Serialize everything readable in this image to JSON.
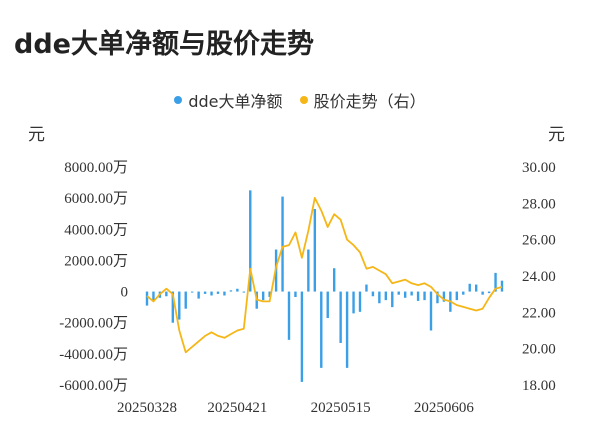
{
  "title": "dde大单净额与股价走势",
  "chart_data": {
    "type": "bar+line",
    "title": "dde大单净额与股价走势",
    "left_unit": "元",
    "right_unit": "元",
    "y_left_ticks": [
      "8000.00万",
      "6000.00万",
      "4000.00万",
      "2000.00万",
      "0",
      "-2000.00万",
      "-4000.00万",
      "-6000.00万"
    ],
    "y_left_values": [
      8000,
      6000,
      4000,
      2000,
      0,
      -2000,
      -4000,
      -6000
    ],
    "y_right_ticks": [
      "30.00",
      "28.00",
      "26.00",
      "24.00",
      "22.00",
      "20.00",
      "18.00"
    ],
    "y_right_values": [
      30,
      28,
      26,
      24,
      22,
      20,
      18
    ],
    "ylim_left": [
      -6000,
      8000
    ],
    "ylim_right": [
      18,
      30
    ],
    "x_ticks": [
      {
        "label": "20250328",
        "index": 0
      },
      {
        "label": "20250421",
        "index": 14
      },
      {
        "label": "20250515",
        "index": 30
      },
      {
        "label": "20250606",
        "index": 46
      }
    ],
    "dates_shown": [
      "20250328",
      "20250421",
      "20250515",
      "20250606"
    ],
    "series": [
      {
        "name": "dde大单净额",
        "kind": "bar",
        "color": "#3a9fe6",
        "values": [
          -900,
          -600,
          -400,
          -300,
          -2000,
          -1800,
          -1100,
          -50,
          -450,
          -150,
          -250,
          -150,
          -250,
          80,
          180,
          -50,
          6500,
          -1100,
          -550,
          -350,
          2700,
          6100,
          -3100,
          -350,
          -5800,
          2700,
          5300,
          -4900,
          -1700,
          1500,
          -3300,
          -4900,
          -1400,
          -1300,
          450,
          -300,
          -750,
          -550,
          -1000,
          -200,
          -400,
          -250,
          -600,
          -550,
          -2500,
          -750,
          -650,
          -1300,
          -550,
          -200,
          500,
          450,
          -200,
          -100,
          1200,
          700
        ]
      },
      {
        "name": "股价走势（右）",
        "kind": "line",
        "color": "#f5b617",
        "values": [
          22.9,
          22.6,
          23.0,
          23.3,
          23.0,
          21.0,
          19.8,
          20.1,
          20.4,
          20.7,
          20.9,
          20.7,
          20.6,
          20.8,
          21.0,
          21.1,
          24.4,
          22.7,
          22.6,
          22.6,
          24.5,
          25.6,
          25.7,
          26.4,
          25.0,
          26.5,
          28.3,
          27.6,
          26.7,
          27.4,
          27.1,
          26.0,
          25.7,
          25.3,
          24.4,
          24.5,
          24.3,
          24.1,
          23.6,
          23.7,
          23.8,
          23.6,
          23.5,
          23.6,
          23.4,
          23.0,
          22.7,
          22.6,
          22.4,
          22.3,
          22.2,
          22.1,
          22.2,
          22.8,
          23.3,
          23.4
        ]
      }
    ],
    "legend_position": "top-center",
    "grid": false
  }
}
